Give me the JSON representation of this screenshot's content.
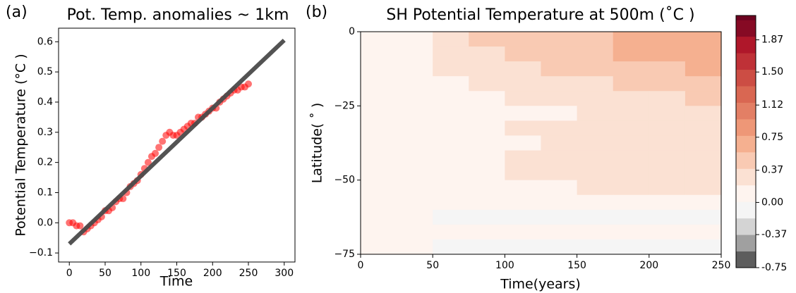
{
  "chart_data": [
    {
      "type": "scatter",
      "panel_label": "(a)",
      "title": "Pot. Temp. anomalies ~ 1km",
      "x_label": "Time",
      "y_label": "Potential Temperature (°C )",
      "xlim": [
        -15,
        315
      ],
      "ylim": [
        -0.13,
        0.645
      ],
      "xticks": [
        0,
        50,
        100,
        150,
        200,
        250,
        300
      ],
      "yticks": [
        {
          "value": -0.1,
          "label": "−0.1"
        },
        {
          "value": 0,
          "label": "0.0"
        },
        0.1,
        0.2,
        0.3,
        0.4,
        0.5,
        0.6
      ],
      "series": [
        {
          "type": "scatter",
          "color": "#ff0000",
          "x": [
            0,
            5,
            10,
            15,
            20,
            25,
            30,
            35,
            40,
            45,
            50,
            55,
            60,
            65,
            70,
            75,
            80,
            85,
            90,
            95,
            100,
            105,
            110,
            115,
            120,
            125,
            130,
            135,
            140,
            145,
            150,
            155,
            160,
            165,
            170,
            175,
            180,
            185,
            190,
            195,
            200,
            205,
            210,
            215,
            220,
            225,
            230,
            235,
            240,
            245,
            250
          ],
          "values": [
            0.0,
            0.0,
            -0.01,
            -0.01,
            -0.03,
            -0.02,
            -0.01,
            0.0,
            0.01,
            0.02,
            0.04,
            0.04,
            0.05,
            0.07,
            0.08,
            0.08,
            0.1,
            0.12,
            0.13,
            0.14,
            0.16,
            0.18,
            0.2,
            0.22,
            0.23,
            0.25,
            0.27,
            0.29,
            0.3,
            0.29,
            0.29,
            0.3,
            0.31,
            0.32,
            0.33,
            0.33,
            0.35,
            0.35,
            0.36,
            0.37,
            0.38,
            0.38,
            0.4,
            0.41,
            0.42,
            0.43,
            0.44,
            0.44,
            0.45,
            0.45,
            0.46
          ]
        },
        {
          "type": "line",
          "color": "#4a4a4a",
          "x": [
            0,
            300
          ],
          "values": [
            -0.07,
            0.605
          ]
        }
      ]
    },
    {
      "type": "heatmap",
      "panel_label": "(b)",
      "title": "SH Potential Temperature at 500m (˚C )",
      "x_label": "Time(years)",
      "y_label": "Latitude( ˚ )",
      "xlim": [
        0,
        250
      ],
      "ylim": [
        -75,
        0
      ],
      "xticks": [
        0,
        50,
        100,
        150,
        200,
        250
      ],
      "yticks": [
        0,
        {
          "value": -25,
          "label": "−25"
        },
        {
          "value": -50,
          "label": "−50"
        },
        {
          "value": -75,
          "label": "−75"
        }
      ],
      "x": [
        12.5,
        37.5,
        62.5,
        87.5,
        112.5,
        137.5,
        162.5,
        187.5,
        212.5,
        237.5
      ],
      "y": [
        -2.5,
        -7.5,
        -12.5,
        -17.5,
        -22.5,
        -27.5,
        -32.5,
        -37.5,
        -42.5,
        -47.5,
        -52.5,
        -57.5,
        -62.5,
        -67.5,
        -72.5
      ],
      "z": [
        [
          0.1,
          0.15,
          0.3,
          0.4,
          0.45,
          0.5,
          0.55,
          0.6,
          0.62,
          0.65
        ],
        [
          0.08,
          0.12,
          0.28,
          0.38,
          0.45,
          0.5,
          0.55,
          0.62,
          0.7,
          0.72
        ],
        [
          0.06,
          0.1,
          0.22,
          0.3,
          0.38,
          0.42,
          0.48,
          0.52,
          0.55,
          0.6
        ],
        [
          0.05,
          0.08,
          0.15,
          0.22,
          0.28,
          0.32,
          0.38,
          0.42,
          0.45,
          0.48
        ],
        [
          0.04,
          0.06,
          0.12,
          0.18,
          0.22,
          0.26,
          0.3,
          0.34,
          0.38,
          0.4
        ],
        [
          0.03,
          0.05,
          0.08,
          0.12,
          0.15,
          0.18,
          0.2,
          0.22,
          0.24,
          0.25
        ],
        [
          0.03,
          0.05,
          0.1,
          0.15,
          0.2,
          0.24,
          0.28,
          0.3,
          0.32,
          0.33
        ],
        [
          0.02,
          0.04,
          0.08,
          0.12,
          0.16,
          0.2,
          0.24,
          0.26,
          0.28,
          0.3
        ],
        [
          0.04,
          0.06,
          0.12,
          0.18,
          0.24,
          0.28,
          0.32,
          0.34,
          0.36,
          0.38
        ],
        [
          0.03,
          0.05,
          0.1,
          0.15,
          0.2,
          0.24,
          0.28,
          0.3,
          0.32,
          0.34
        ],
        [
          0.02,
          0.04,
          0.06,
          0.1,
          0.14,
          0.18,
          0.22,
          0.24,
          0.26,
          0.28
        ],
        [
          0.02,
          0.02,
          0.03,
          0.04,
          0.05,
          0.06,
          0.08,
          0.1,
          0.1,
          0.12
        ],
        [
          0.03,
          0.01,
          0.0,
          -0.02,
          -0.03,
          -0.02,
          -0.03,
          -0.05,
          -0.05,
          -0.06
        ],
        [
          0.04,
          0.03,
          0.02,
          0.02,
          0.03,
          0.04,
          0.05,
          0.05,
          0.06,
          0.06
        ],
        [
          0.04,
          0.02,
          0.0,
          -0.04,
          -0.05,
          -0.08,
          -0.08,
          -0.1,
          -0.1,
          -0.1
        ]
      ],
      "cmap": "RdGy_r",
      "colorbar": {
        "lim": [
          -0.75,
          2.15
        ],
        "ticks": [
          -0.75,
          -0.37,
          {
            "value": 0,
            "label": "0.00"
          },
          0.37,
          0.75,
          1.12,
          {
            "value": 1.5,
            "label": "1.50"
          },
          1.87
        ]
      }
    }
  ]
}
